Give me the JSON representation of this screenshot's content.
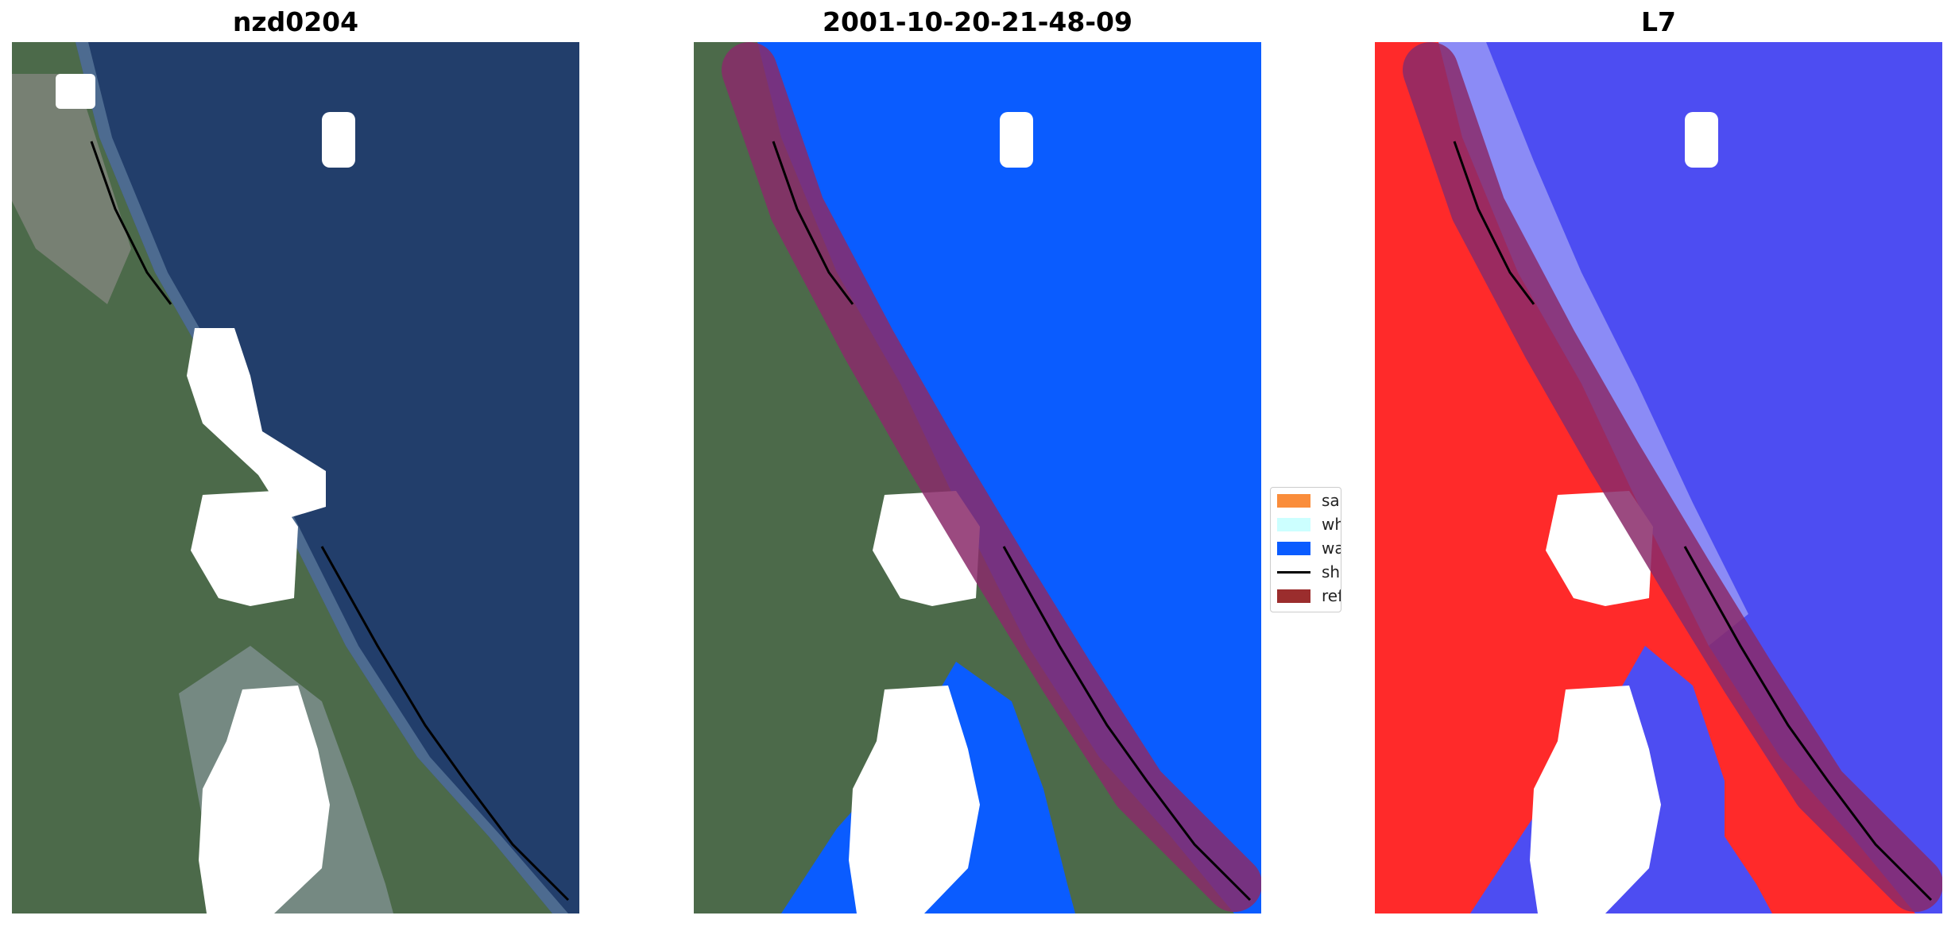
{
  "panels": [
    {
      "title": "nzd0204",
      "view": "rgb"
    },
    {
      "title": "2001-10-20-21-48-09",
      "view": "classified"
    },
    {
      "title": "L7",
      "view": "index"
    }
  ],
  "legend": {
    "items": [
      {
        "label": "sand",
        "color": "#fa8d3b",
        "kind": "patch"
      },
      {
        "label": "whitewater",
        "color": "#ccffff",
        "kind": "patch"
      },
      {
        "label": "water",
        "color": "#0a5cff",
        "kind": "patch"
      },
      {
        "label": "shoreline",
        "color": "#000000",
        "kind": "line"
      },
      {
        "label": "reference shoreline buffer",
        "color": "#9b2d2d",
        "kind": "patch"
      }
    ]
  },
  "colors": {
    "land": "#4c6a4a",
    "ocean": "#223e6b",
    "water_class": "#0a5cff",
    "cloud_mask": "#ffffff",
    "index_land": "#ff2a2a",
    "index_water": "#4d4df2",
    "buffer": "#8a2a6a"
  }
}
